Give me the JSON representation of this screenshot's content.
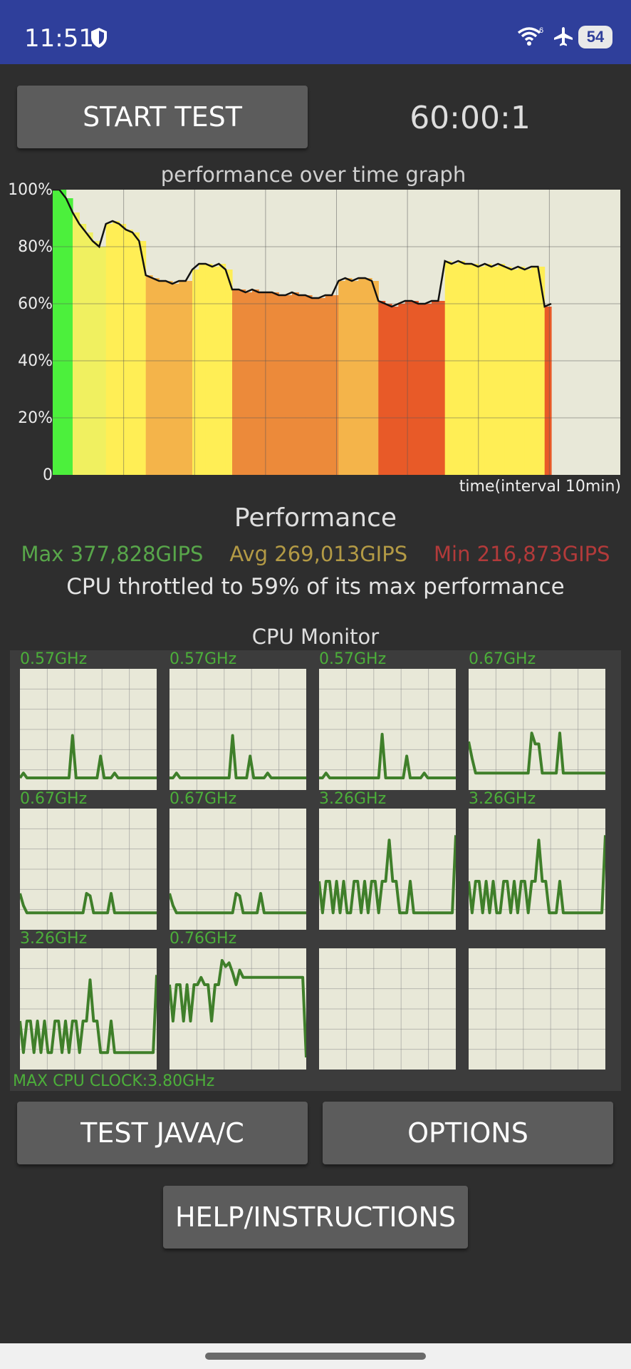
{
  "status_bar": {
    "time": "11:51",
    "battery": "54",
    "icons": [
      "shield-icon",
      "wifi-icon",
      "airplane-icon",
      "battery-icon"
    ]
  },
  "controls": {
    "start_label": "START TEST",
    "timer": "60:00:1"
  },
  "graph": {
    "title": "performance over time graph",
    "y_ticks": [
      "100%",
      "80%",
      "60%",
      "40%",
      "20%",
      "0"
    ],
    "x_label": "time(interval 10min)"
  },
  "chart_data": {
    "type": "area",
    "x_label": "time(interval 10min)",
    "y_ticks": [
      "100%",
      "80%",
      "60%",
      "40%",
      "20%",
      "0"
    ],
    "ylim": [
      0,
      100
    ],
    "x_grid_count": 8,
    "grid": true,
    "series": [
      {
        "values": [
          100,
          100,
          97,
          92,
          88,
          85,
          82,
          80,
          88,
          89,
          88,
          86,
          85,
          82,
          70,
          69,
          68,
          68,
          67,
          68,
          68,
          72,
          74,
          74,
          73,
          74,
          72,
          65,
          65,
          64,
          65,
          64,
          64,
          64,
          63,
          63,
          64,
          63,
          63,
          62,
          62,
          63,
          63,
          68,
          69,
          68,
          69,
          69,
          68,
          61,
          60,
          59,
          60,
          61,
          61,
          60,
          60,
          61,
          61,
          75,
          74,
          75,
          74,
          74,
          73,
          74,
          73,
          74,
          73,
          72,
          73,
          72,
          73,
          73,
          59,
          60
        ]
      }
    ],
    "gradient_colors": [
      "#4cf03c",
      "#f0f060",
      "#ffee55",
      "#f4b44a",
      "#ec8a3a",
      "#e85a28"
    ]
  },
  "performance": {
    "title": "Performance",
    "max": "Max 377,828GIPS",
    "avg": "Avg 269,013GIPS",
    "min": "Min 216,873GIPS",
    "throttle": "CPU throttled to 59% of its max performance",
    "colors": {
      "max": "#58a64a",
      "avg": "#b39a45",
      "min": "#b23a3a"
    }
  },
  "cpu_monitor": {
    "title": "CPU Monitor",
    "max_clock": "MAX CPU CLOCK:3.80GHz",
    "cores": [
      {
        "freq": "0.57GHz",
        "values": [
          10,
          14,
          10,
          10,
          10,
          10,
          10,
          10,
          10,
          10,
          10,
          10,
          10,
          10,
          10,
          45,
          10,
          10,
          10,
          10,
          10,
          10,
          10,
          28,
          10,
          10,
          10,
          14,
          10,
          10,
          10,
          10,
          10,
          10,
          10,
          10,
          10,
          10,
          10,
          10
        ]
      },
      {
        "freq": "0.57GHz",
        "values": [
          10,
          10,
          14,
          10,
          10,
          10,
          10,
          10,
          10,
          10,
          10,
          10,
          10,
          10,
          10,
          10,
          10,
          10,
          45,
          10,
          10,
          10,
          10,
          28,
          10,
          10,
          10,
          10,
          14,
          10,
          10,
          10,
          10,
          10,
          10,
          10,
          10,
          10,
          10,
          10
        ]
      },
      {
        "freq": "0.57GHz",
        "values": [
          10,
          10,
          14,
          10,
          10,
          10,
          10,
          10,
          10,
          10,
          10,
          10,
          10,
          10,
          10,
          10,
          10,
          10,
          46,
          10,
          10,
          10,
          10,
          10,
          10,
          28,
          10,
          10,
          10,
          10,
          14,
          10,
          10,
          10,
          10,
          10,
          10,
          10,
          10,
          10
        ]
      },
      {
        "freq": "0.67GHz",
        "values": [
          40,
          26,
          14,
          14,
          14,
          14,
          14,
          14,
          14,
          14,
          14,
          14,
          14,
          14,
          14,
          14,
          14,
          14,
          47,
          38,
          38,
          14,
          14,
          14,
          14,
          14,
          47,
          14,
          14,
          14,
          14,
          14,
          14,
          14,
          14,
          14,
          14,
          14,
          14,
          14
        ]
      },
      {
        "freq": "0.67GHz",
        "values": [
          30,
          20,
          14,
          14,
          14,
          14,
          14,
          14,
          14,
          14,
          14,
          14,
          14,
          14,
          14,
          14,
          14,
          14,
          14,
          30,
          28,
          14,
          14,
          14,
          14,
          14,
          30,
          14,
          14,
          14,
          14,
          14,
          14,
          14,
          14,
          14,
          14,
          14,
          14,
          14
        ]
      },
      {
        "freq": "0.67GHz",
        "values": [
          30,
          20,
          14,
          14,
          14,
          14,
          14,
          14,
          14,
          14,
          14,
          14,
          14,
          14,
          14,
          14,
          14,
          14,
          14,
          30,
          28,
          14,
          14,
          14,
          14,
          14,
          30,
          14,
          14,
          14,
          14,
          14,
          14,
          14,
          14,
          14,
          14,
          14,
          14,
          14
        ]
      },
      {
        "freq": "3.26GHz",
        "values": [
          40,
          14,
          40,
          40,
          14,
          40,
          14,
          40,
          14,
          14,
          40,
          40,
          14,
          40,
          14,
          40,
          40,
          14,
          40,
          40,
          74,
          40,
          40,
          14,
          14,
          14,
          40,
          14,
          14,
          14,
          14,
          14,
          14,
          14,
          14,
          14,
          14,
          14,
          14,
          78
        ]
      },
      {
        "freq": "3.26GHz",
        "values": [
          40,
          14,
          40,
          40,
          14,
          40,
          14,
          40,
          14,
          14,
          40,
          40,
          14,
          40,
          14,
          40,
          40,
          14,
          40,
          40,
          74,
          40,
          40,
          14,
          14,
          14,
          40,
          14,
          14,
          14,
          14,
          14,
          14,
          14,
          14,
          14,
          14,
          14,
          14,
          78
        ]
      },
      {
        "freq": "3.26GHz",
        "values": [
          40,
          14,
          40,
          40,
          14,
          40,
          14,
          40,
          14,
          14,
          40,
          40,
          14,
          40,
          14,
          40,
          40,
          14,
          40,
          40,
          74,
          40,
          40,
          14,
          14,
          14,
          40,
          14,
          14,
          14,
          14,
          14,
          14,
          14,
          14,
          14,
          14,
          14,
          14,
          78
        ]
      },
      {
        "freq": "0.76GHz",
        "values": [
          70,
          40,
          70,
          70,
          40,
          70,
          40,
          70,
          70,
          76,
          70,
          70,
          40,
          70,
          70,
          90,
          85,
          88,
          80,
          70,
          82,
          76,
          76,
          76,
          76,
          76,
          76,
          76,
          76,
          76,
          76,
          76,
          76,
          76,
          76,
          76,
          76,
          76,
          76,
          10
        ]
      },
      {
        "freq": "",
        "values": []
      },
      {
        "freq": "",
        "values": []
      }
    ]
  },
  "buttons": {
    "test_java": "TEST JAVA/C",
    "options": "OPTIONS",
    "help": "HELP/INSTRUCTIONS"
  }
}
